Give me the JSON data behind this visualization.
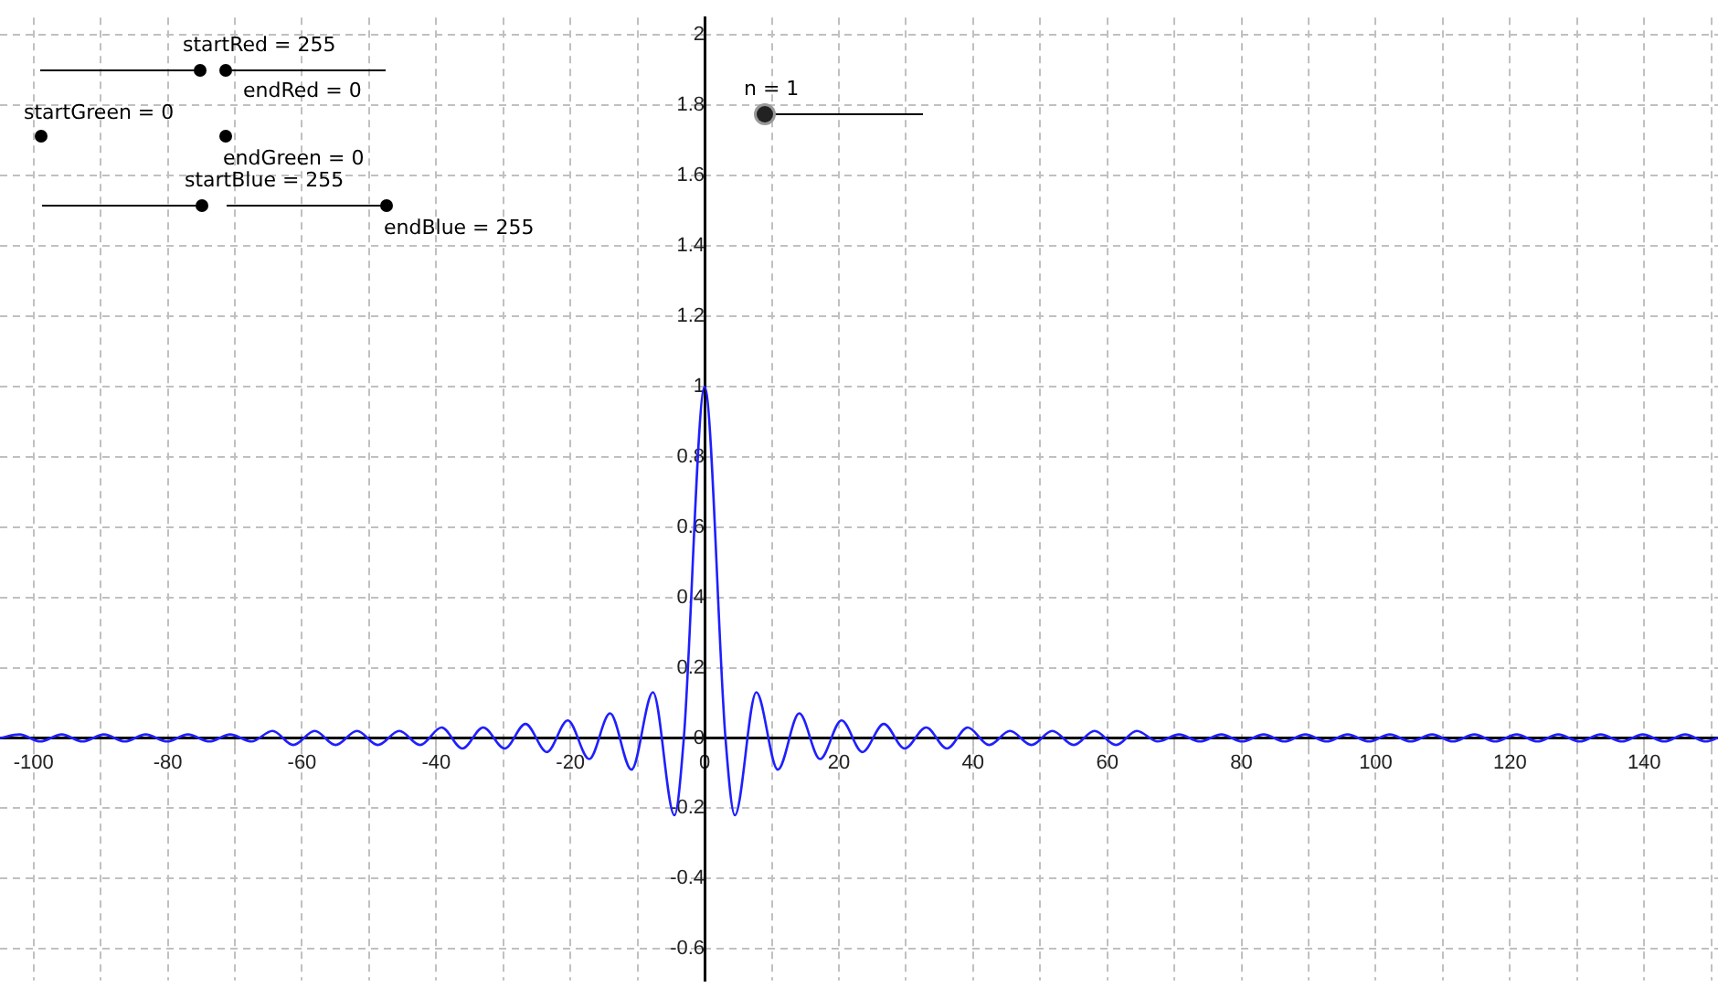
{
  "chart_data": {
    "type": "line",
    "x": [
      -105,
      -102.1,
      -99,
      -95.8,
      -92.7,
      -89.5,
      -86.4,
      -83.3,
      -80.1,
      -77,
      -73.8,
      -70.7,
      -67.5,
      -64.4,
      -61.3,
      -58.1,
      -55,
      -51.8,
      -48.7,
      -45.5,
      -42.4,
      -39.2,
      -36.1,
      -33,
      -29.8,
      -26.7,
      -23.5,
      -20.4,
      -17.2,
      -14.1,
      -10.9,
      -7.7,
      -4.5,
      -3.1,
      0,
      3.1,
      4.5,
      7.7,
      10.9,
      14.1,
      17.2,
      20.4,
      23.5,
      26.7,
      29.8,
      33,
      36.1,
      39.2,
      42.4,
      45.5,
      48.7,
      51.8,
      55,
      58.1,
      61.3,
      64.4,
      67.5,
      70.7,
      73.8,
      77,
      80.1,
      83.3,
      86.4,
      89.5,
      92.7,
      95.8,
      99,
      102.1,
      105.2,
      108.4,
      111.5,
      114.7,
      117.8,
      121,
      124.1,
      127.2,
      130.4,
      133.5,
      136.7,
      139.8,
      143,
      146.1,
      149.2,
      151
    ],
    "series": [
      {
        "color": "#1f1fff",
        "values": [
          0,
          0.01,
          -0.01,
          0.01,
          -0.01,
          0.01,
          -0.01,
          0.01,
          -0.01,
          0.01,
          -0.01,
          0.01,
          -0.01,
          0.02,
          -0.02,
          0.02,
          -0.02,
          0.02,
          -0.02,
          0.02,
          -0.02,
          0.03,
          -0.03,
          0.03,
          -0.03,
          0.04,
          -0.04,
          0.05,
          -0.06,
          0.07,
          -0.09,
          0.13,
          -0.22,
          0,
          1,
          0,
          -0.22,
          0.13,
          -0.09,
          0.07,
          -0.06,
          0.05,
          -0.04,
          0.04,
          -0.03,
          0.03,
          -0.03,
          0.03,
          -0.02,
          0.02,
          -0.02,
          0.02,
          -0.02,
          0.02,
          -0.02,
          0.02,
          -0.01,
          0.01,
          -0.01,
          0.01,
          -0.01,
          0.01,
          -0.01,
          0.01,
          -0.01,
          0.01,
          -0.01,
          0.01,
          -0.01,
          0.01,
          -0.01,
          0.01,
          -0.01,
          0.01,
          -0.01,
          0.01,
          -0.01,
          0.01,
          -0.01,
          0.01,
          -0.01,
          0.01,
          -0.01,
          0
        ]
      }
    ],
    "xlim": [
      -105,
      151
    ],
    "ylim": [
      -0.69,
      2.05
    ],
    "xticks": [
      {
        "value": -100,
        "label": "-100"
      },
      {
        "value": -90,
        "label": null
      },
      {
        "value": -80,
        "label": "-80"
      },
      {
        "value": -70,
        "label": null
      },
      {
        "value": -60,
        "label": "-60"
      },
      {
        "value": -50,
        "label": null
      },
      {
        "value": -40,
        "label": "-40"
      },
      {
        "value": -30,
        "label": null
      },
      {
        "value": -20,
        "label": "-20"
      },
      {
        "value": -10,
        "label": null
      },
      0,
      {
        "value": 10,
        "label": null
      },
      20,
      {
        "value": 30,
        "label": null
      },
      40,
      {
        "value": 50,
        "label": null
      },
      60,
      {
        "value": 70,
        "label": null
      },
      80,
      {
        "value": 90,
        "label": null
      },
      100,
      {
        "value": 110,
        "label": null
      },
      120,
      {
        "value": 130,
        "label": null
      },
      140,
      {
        "value": 150,
        "label": null
      }
    ],
    "yticks": [
      -0.6,
      -0.4,
      -0.2,
      0,
      0.2,
      0.4,
      0.6,
      0.8,
      1,
      1.2,
      1.4,
      1.6,
      1.8,
      2
    ],
    "grid": true,
    "legend": false,
    "marker": "none",
    "line_style": "solid",
    "annotations": [
      "startRed = 255",
      "endRed = 0",
      "startGreen = 0",
      "endGreen = 0",
      "startBlue = 255",
      "endBlue = 255",
      "n = 1"
    ]
  }
}
